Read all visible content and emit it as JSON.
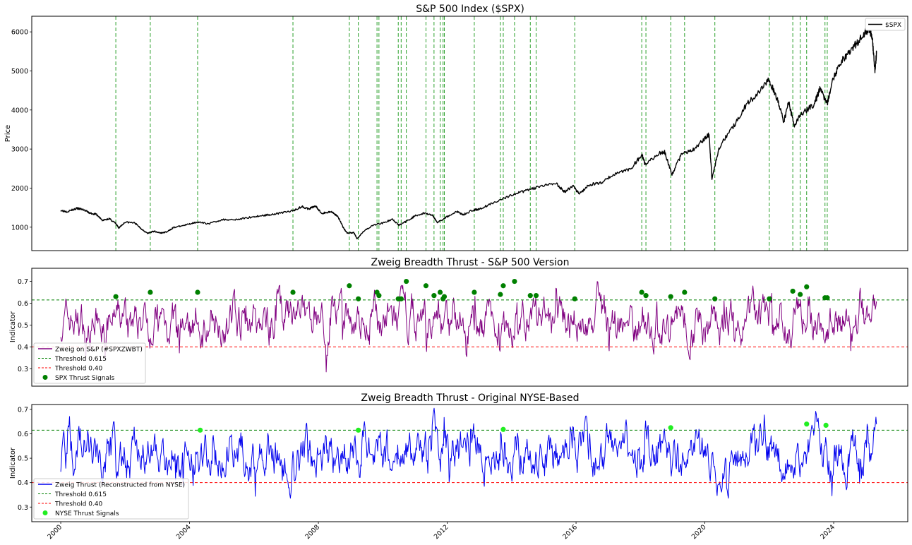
{
  "colors": {
    "price": "#000000",
    "signal_line": "#2ca02c",
    "zweig_sp": "#800080",
    "zweig_nyse": "#0000ee",
    "thresh_hi": "#008000",
    "thresh_lo": "#ff0000",
    "spx_dots": "#008000",
    "nyse_dots": "#22ee22"
  },
  "chart_data": [
    {
      "type": "line",
      "title": "S&P 500 Index ($SPX)",
      "ylabel": "Price",
      "xlabel": "",
      "xlim": [
        1999.1,
        2026.3
      ],
      "ylim": [
        400,
        6400
      ],
      "yticks": [
        1000,
        2000,
        3000,
        4000,
        5000,
        6000
      ],
      "legend": {
        "position": "top-right",
        "entries": [
          "$SPX"
        ]
      },
      "series": [
        {
          "name": "$SPX",
          "points": [
            [
              2000.0,
              1430
            ],
            [
              2000.2,
              1400
            ],
            [
              2000.5,
              1480
            ],
            [
              2000.7,
              1450
            ],
            [
              2000.9,
              1360
            ],
            [
              2001.1,
              1330
            ],
            [
              2001.3,
              1170
            ],
            [
              2001.5,
              1220
            ],
            [
              2001.7,
              1100
            ],
            [
              2001.8,
              980
            ],
            [
              2002.0,
              1130
            ],
            [
              2002.3,
              1110
            ],
            [
              2002.5,
              960
            ],
            [
              2002.7,
              840
            ],
            [
              2002.9,
              900
            ],
            [
              2003.1,
              850
            ],
            [
              2003.3,
              880
            ],
            [
              2003.5,
              990
            ],
            [
              2003.9,
              1060
            ],
            [
              2004.2,
              1130
            ],
            [
              2004.6,
              1090
            ],
            [
              2005.0,
              1190
            ],
            [
              2005.5,
              1200
            ],
            [
              2006.0,
              1270
            ],
            [
              2006.4,
              1310
            ],
            [
              2006.8,
              1360
            ],
            [
              2007.2,
              1420
            ],
            [
              2007.5,
              1530
            ],
            [
              2007.7,
              1460
            ],
            [
              2007.9,
              1550
            ],
            [
              2008.1,
              1350
            ],
            [
              2008.4,
              1400
            ],
            [
              2008.6,
              1280
            ],
            [
              2008.8,
              950
            ],
            [
              2008.9,
              850
            ],
            [
              2009.1,
              860
            ],
            [
              2009.2,
              700
            ],
            [
              2009.4,
              900
            ],
            [
              2009.7,
              1050
            ],
            [
              2010.0,
              1110
            ],
            [
              2010.3,
              1200
            ],
            [
              2010.5,
              1050
            ],
            [
              2010.8,
              1180
            ],
            [
              2011.0,
              1290
            ],
            [
              2011.3,
              1360
            ],
            [
              2011.55,
              1300
            ],
            [
              2011.7,
              1120
            ],
            [
              2011.95,
              1250
            ],
            [
              2012.3,
              1400
            ],
            [
              2012.5,
              1320
            ],
            [
              2012.8,
              1440
            ],
            [
              2013.0,
              1460
            ],
            [
              2013.5,
              1650
            ],
            [
              2014.0,
              1820
            ],
            [
              2014.5,
              1950
            ],
            [
              2015.0,
              2060
            ],
            [
              2015.4,
              2110
            ],
            [
              2015.65,
              1900
            ],
            [
              2015.9,
              2060
            ],
            [
              2016.1,
              1850
            ],
            [
              2016.4,
              2080
            ],
            [
              2016.8,
              2150
            ],
            [
              2017.2,
              2360
            ],
            [
              2017.7,
              2500
            ],
            [
              2018.05,
              2860
            ],
            [
              2018.15,
              2600
            ],
            [
              2018.6,
              2900
            ],
            [
              2018.75,
              2920
            ],
            [
              2018.98,
              2350
            ],
            [
              2019.3,
              2900
            ],
            [
              2019.6,
              2950
            ],
            [
              2019.95,
              3230
            ],
            [
              2020.13,
              3380
            ],
            [
              2020.22,
              2230
            ],
            [
              2020.45,
              3050
            ],
            [
              2020.9,
              3600
            ],
            [
              2021.3,
              4150
            ],
            [
              2021.7,
              4450
            ],
            [
              2021.98,
              4780
            ],
            [
              2022.2,
              4400
            ],
            [
              2022.45,
              3700
            ],
            [
              2022.6,
              4200
            ],
            [
              2022.78,
              3600
            ],
            [
              2023.0,
              3900
            ],
            [
              2023.4,
              4150
            ],
            [
              2023.58,
              4560
            ],
            [
              2023.8,
              4150
            ],
            [
              2023.98,
              4780
            ],
            [
              2024.2,
              5200
            ],
            [
              2024.5,
              5500
            ],
            [
              2024.8,
              5800
            ],
            [
              2025.1,
              6100
            ],
            [
              2025.2,
              5850
            ],
            [
              2025.28,
              5000
            ],
            [
              2025.33,
              5450
            ]
          ]
        }
      ],
      "signal_years": [
        2001.71,
        2002.78,
        2004.25,
        2007.21,
        2008.96,
        2009.24,
        2009.82,
        2009.88,
        2010.48,
        2010.57,
        2010.73,
        2011.34,
        2011.59,
        2011.78,
        2011.87,
        2011.91,
        2012.84,
        2013.65,
        2013.74,
        2014.09,
        2014.58,
        2014.76,
        2015.96,
        2018.04,
        2018.17,
        2018.94,
        2019.37,
        2020.31,
        2022.0,
        2022.73,
        2022.96,
        2023.16,
        2023.73,
        2023.8
      ]
    },
    {
      "type": "line",
      "title": "Zweig Breadth Thrust - S&P 500 Version",
      "ylabel": "Indicator",
      "xlabel": "",
      "xlim": [
        1999.1,
        2026.3
      ],
      "ylim": [
        0.22,
        0.76
      ],
      "yticks": [
        0.3,
        0.4,
        0.5,
        0.6,
        0.7
      ],
      "legend": {
        "position": "bottom-left",
        "entries": [
          "Zweig on S&P (#SPXZWBT)",
          "Threshold 0.615",
          "Threshold 0.40",
          "SPX Thrust Signals"
        ]
      },
      "thresholds": [
        0.615,
        0.4
      ],
      "x_start": 2000.0,
      "x_end": 2025.33,
      "random_seed": 7,
      "signals": [
        [
          2001.71,
          0.63
        ],
        [
          2002.78,
          0.65
        ],
        [
          2004.25,
          0.65
        ],
        [
          2007.21,
          0.65
        ],
        [
          2008.96,
          0.68
        ],
        [
          2009.24,
          0.62
        ],
        [
          2009.82,
          0.65
        ],
        [
          2009.88,
          0.635
        ],
        [
          2010.48,
          0.62
        ],
        [
          2010.57,
          0.62
        ],
        [
          2010.73,
          0.7
        ],
        [
          2011.34,
          0.68
        ],
        [
          2011.59,
          0.635
        ],
        [
          2011.78,
          0.65
        ],
        [
          2011.87,
          0.62
        ],
        [
          2011.91,
          0.63
        ],
        [
          2012.84,
          0.65
        ],
        [
          2013.65,
          0.64
        ],
        [
          2013.74,
          0.68
        ],
        [
          2014.09,
          0.7
        ],
        [
          2014.58,
          0.635
        ],
        [
          2014.76,
          0.635
        ],
        [
          2015.96,
          0.62
        ],
        [
          2018.04,
          0.65
        ],
        [
          2018.17,
          0.635
        ],
        [
          2018.94,
          0.63
        ],
        [
          2019.37,
          0.65
        ],
        [
          2020.31,
          0.62
        ],
        [
          2022.0,
          0.62
        ],
        [
          2022.73,
          0.655
        ],
        [
          2022.96,
          0.64
        ],
        [
          2023.16,
          0.675
        ],
        [
          2023.73,
          0.625
        ],
        [
          2023.8,
          0.625
        ]
      ]
    },
    {
      "type": "line",
      "title": "Zweig Breadth Thrust - Original NYSE-Based",
      "ylabel": "Indicator",
      "xlabel": "",
      "xlim": [
        1999.1,
        2026.3
      ],
      "ylim": [
        0.24,
        0.72
      ],
      "yticks": [
        0.3,
        0.4,
        0.5,
        0.6,
        0.7
      ],
      "xticks": [
        "2000",
        "2004",
        "2008",
        "2012",
        "2016",
        "2020",
        "2024"
      ],
      "legend": {
        "position": "bottom-left",
        "entries": [
          "Zweig Thrust (Reconstructed from NYSE)",
          "Threshold 0.615",
          "Threshold 0.40",
          "NYSE Thrust Signals"
        ]
      },
      "thresholds": [
        0.615,
        0.4
      ],
      "x_start": 2000.0,
      "x_end": 2025.33,
      "random_seed": 19,
      "signals": [
        [
          2004.33,
          0.615
        ],
        [
          2009.24,
          0.615
        ],
        [
          2013.74,
          0.618
        ],
        [
          2018.94,
          0.625
        ],
        [
          2023.16,
          0.64
        ],
        [
          2023.76,
          0.635
        ]
      ]
    }
  ]
}
